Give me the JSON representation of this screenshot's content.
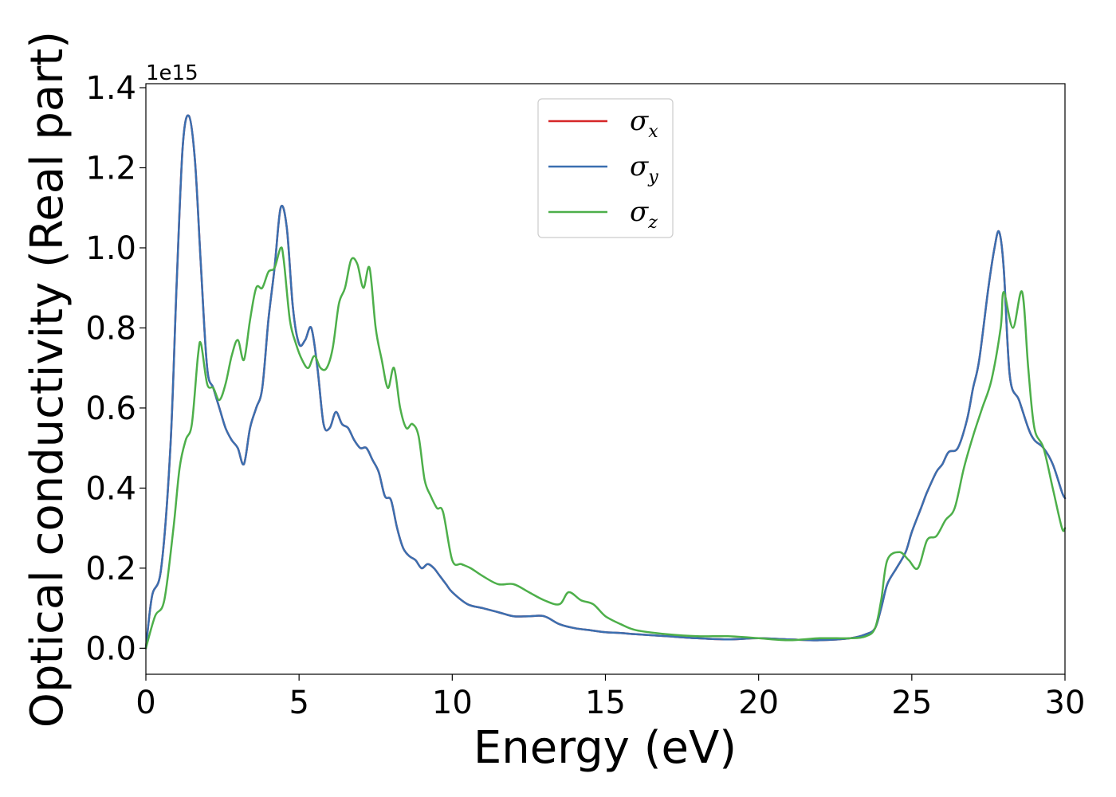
{
  "chart_data": {
    "type": "line",
    "xlabel": "Energy (eV)",
    "ylabel": "Optical conductivity (Real part)",
    "y_offset_label": "1e15",
    "xlim": [
      0,
      30
    ],
    "ylim": [
      -0.065,
      1.41
    ],
    "x_ticks": [
      0,
      5,
      10,
      15,
      20,
      25,
      30
    ],
    "y_ticks": [
      0.0,
      0.2,
      0.4,
      0.6,
      0.8,
      1.0,
      1.2,
      1.4
    ],
    "y_tick_labels": [
      "0.0",
      "0.2",
      "0.4",
      "0.6",
      "0.8",
      "1.0",
      "1.2",
      "1.4"
    ],
    "x_tick_labels": [
      "0",
      "5",
      "10",
      "15",
      "20",
      "25",
      "30"
    ],
    "grid": false,
    "legend_position": "top-center",
    "legend": [
      {
        "symbol": "σ",
        "sub": "x",
        "color": "#d62728"
      },
      {
        "symbol": "σ",
        "sub": "y",
        "color": "#3a6fb0"
      },
      {
        "symbol": "σ",
        "sub": "z",
        "color": "#4daf4a"
      }
    ],
    "series": [
      {
        "color": "#d62728",
        "x": [
          0,
          0.2,
          0.5,
          0.8,
          1.0,
          1.2,
          1.4,
          1.6,
          1.8,
          2.0,
          2.2,
          2.4,
          2.6,
          2.8,
          3.0,
          3.2,
          3.4,
          3.6,
          3.8,
          4.0,
          4.2,
          4.4,
          4.6,
          4.8,
          5.0,
          5.2,
          5.4,
          5.6,
          5.8,
          6.0,
          6.2,
          6.4,
          6.6,
          6.8,
          7.0,
          7.2,
          7.4,
          7.6,
          7.8,
          8.0,
          8.2,
          8.4,
          8.6,
          8.8,
          9.0,
          9.2,
          9.4,
          9.6,
          9.8,
          10.0,
          10.5,
          11.0,
          11.5,
          12.0,
          12.5,
          13.0,
          13.5,
          14.0,
          14.5,
          15.0,
          15.5,
          16.0,
          17.0,
          18.0,
          19.0,
          20.0,
          21.0,
          22.0,
          23.0,
          23.5,
          23.8,
          24.0,
          24.2,
          24.5,
          24.8,
          25.0,
          25.3,
          25.5,
          25.8,
          26.0,
          26.2,
          26.5,
          26.8,
          27.0,
          27.2,
          27.5,
          27.7,
          27.85,
          28.0,
          28.2,
          28.5,
          28.8,
          29.0,
          29.3,
          29.6,
          29.9,
          30.0
        ],
        "values": [
          0.0,
          0.13,
          0.2,
          0.5,
          0.9,
          1.25,
          1.33,
          1.22,
          0.95,
          0.7,
          0.65,
          0.6,
          0.55,
          0.52,
          0.5,
          0.46,
          0.55,
          0.6,
          0.65,
          0.82,
          0.95,
          1.1,
          1.05,
          0.85,
          0.76,
          0.77,
          0.8,
          0.7,
          0.56,
          0.55,
          0.59,
          0.56,
          0.55,
          0.52,
          0.5,
          0.5,
          0.47,
          0.44,
          0.38,
          0.37,
          0.3,
          0.25,
          0.23,
          0.22,
          0.2,
          0.21,
          0.2,
          0.18,
          0.16,
          0.14,
          0.11,
          0.1,
          0.09,
          0.08,
          0.08,
          0.08,
          0.06,
          0.05,
          0.045,
          0.04,
          0.038,
          0.035,
          0.03,
          0.025,
          0.022,
          0.025,
          0.022,
          0.02,
          0.025,
          0.035,
          0.05,
          0.1,
          0.16,
          0.2,
          0.24,
          0.29,
          0.35,
          0.39,
          0.44,
          0.46,
          0.49,
          0.5,
          0.57,
          0.65,
          0.72,
          0.9,
          1.0,
          1.04,
          0.95,
          0.68,
          0.62,
          0.55,
          0.52,
          0.5,
          0.46,
          0.39,
          0.375
        ]
      },
      {
        "color": "#3a6fb0",
        "x": [
          0,
          0.2,
          0.5,
          0.8,
          1.0,
          1.2,
          1.4,
          1.6,
          1.8,
          2.0,
          2.2,
          2.4,
          2.6,
          2.8,
          3.0,
          3.2,
          3.4,
          3.6,
          3.8,
          4.0,
          4.2,
          4.4,
          4.6,
          4.8,
          5.0,
          5.2,
          5.4,
          5.6,
          5.8,
          6.0,
          6.2,
          6.4,
          6.6,
          6.8,
          7.0,
          7.2,
          7.4,
          7.6,
          7.8,
          8.0,
          8.2,
          8.4,
          8.6,
          8.8,
          9.0,
          9.2,
          9.4,
          9.6,
          9.8,
          10.0,
          10.5,
          11.0,
          11.5,
          12.0,
          12.5,
          13.0,
          13.5,
          14.0,
          14.5,
          15.0,
          15.5,
          16.0,
          17.0,
          18.0,
          19.0,
          20.0,
          21.0,
          22.0,
          23.0,
          23.5,
          23.8,
          24.0,
          24.2,
          24.5,
          24.8,
          25.0,
          25.3,
          25.5,
          25.8,
          26.0,
          26.2,
          26.5,
          26.8,
          27.0,
          27.2,
          27.5,
          27.7,
          27.85,
          28.0,
          28.2,
          28.5,
          28.8,
          29.0,
          29.3,
          29.6,
          29.9,
          30.0
        ],
        "values": [
          0.0,
          0.13,
          0.2,
          0.5,
          0.9,
          1.25,
          1.33,
          1.22,
          0.95,
          0.7,
          0.65,
          0.6,
          0.55,
          0.52,
          0.5,
          0.46,
          0.55,
          0.6,
          0.65,
          0.82,
          0.95,
          1.1,
          1.05,
          0.85,
          0.76,
          0.77,
          0.8,
          0.7,
          0.56,
          0.55,
          0.59,
          0.56,
          0.55,
          0.52,
          0.5,
          0.5,
          0.47,
          0.44,
          0.38,
          0.37,
          0.3,
          0.25,
          0.23,
          0.22,
          0.2,
          0.21,
          0.2,
          0.18,
          0.16,
          0.14,
          0.11,
          0.1,
          0.09,
          0.08,
          0.08,
          0.08,
          0.06,
          0.05,
          0.045,
          0.04,
          0.038,
          0.035,
          0.03,
          0.025,
          0.022,
          0.025,
          0.022,
          0.02,
          0.025,
          0.035,
          0.05,
          0.1,
          0.16,
          0.2,
          0.24,
          0.29,
          0.35,
          0.39,
          0.44,
          0.46,
          0.49,
          0.5,
          0.57,
          0.65,
          0.72,
          0.9,
          1.0,
          1.04,
          0.95,
          0.68,
          0.62,
          0.55,
          0.52,
          0.5,
          0.46,
          0.39,
          0.375
        ]
      },
      {
        "color": "#4daf4a",
        "x": [
          0,
          0.3,
          0.6,
          0.9,
          1.1,
          1.3,
          1.5,
          1.7,
          1.8,
          2.0,
          2.2,
          2.4,
          2.6,
          2.8,
          3.0,
          3.2,
          3.4,
          3.6,
          3.8,
          4.0,
          4.2,
          4.4,
          4.5,
          4.7,
          4.9,
          5.1,
          5.3,
          5.5,
          5.7,
          5.9,
          6.1,
          6.3,
          6.5,
          6.7,
          6.9,
          7.1,
          7.3,
          7.5,
          7.7,
          7.9,
          8.1,
          8.3,
          8.5,
          8.7,
          8.9,
          9.1,
          9.3,
          9.5,
          9.7,
          10.0,
          10.3,
          10.6,
          11.0,
          11.5,
          12.0,
          12.5,
          13.0,
          13.5,
          13.8,
          14.2,
          14.6,
          15.0,
          15.5,
          16.0,
          17.0,
          18.0,
          19.0,
          20.0,
          21.0,
          22.0,
          23.0,
          23.5,
          23.8,
          24.0,
          24.2,
          24.6,
          24.9,
          25.2,
          25.5,
          25.8,
          26.1,
          26.4,
          26.7,
          27.0,
          27.3,
          27.6,
          27.9,
          28.0,
          28.3,
          28.6,
          28.8,
          29.0,
          29.3,
          29.6,
          29.9,
          30.0
        ],
        "values": [
          0.0,
          0.08,
          0.12,
          0.3,
          0.45,
          0.52,
          0.56,
          0.73,
          0.76,
          0.66,
          0.65,
          0.62,
          0.66,
          0.73,
          0.77,
          0.72,
          0.82,
          0.9,
          0.9,
          0.94,
          0.95,
          1.0,
          0.97,
          0.82,
          0.76,
          0.72,
          0.7,
          0.73,
          0.7,
          0.7,
          0.75,
          0.86,
          0.9,
          0.97,
          0.96,
          0.9,
          0.95,
          0.8,
          0.72,
          0.65,
          0.7,
          0.6,
          0.55,
          0.56,
          0.53,
          0.42,
          0.38,
          0.35,
          0.34,
          0.22,
          0.21,
          0.2,
          0.18,
          0.16,
          0.16,
          0.14,
          0.12,
          0.11,
          0.14,
          0.12,
          0.11,
          0.08,
          0.06,
          0.045,
          0.035,
          0.03,
          0.03,
          0.025,
          0.02,
          0.025,
          0.025,
          0.03,
          0.05,
          0.12,
          0.22,
          0.24,
          0.22,
          0.2,
          0.27,
          0.28,
          0.32,
          0.35,
          0.45,
          0.53,
          0.6,
          0.67,
          0.8,
          0.89,
          0.8,
          0.89,
          0.7,
          0.55,
          0.5,
          0.4,
          0.3,
          0.3
        ]
      }
    ]
  }
}
